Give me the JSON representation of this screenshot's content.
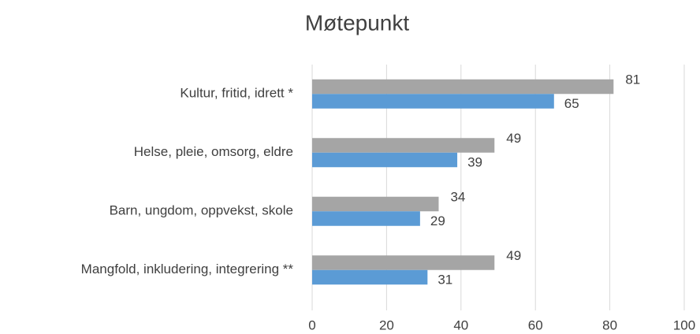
{
  "chart_data": {
    "type": "bar",
    "orientation": "horizontal",
    "title": "Møtepunkt",
    "categories": [
      "Kultur, fritid, idrett *",
      "Helse, pleie, omsorg, eldre",
      "Barn, ungdom, oppvekst, skole",
      "Mangfold, inkludering, integrering **"
    ],
    "series": [
      {
        "color": "#a5a5a5",
        "values": [
          81,
          49,
          34,
          49
        ]
      },
      {
        "color": "#5b9bd5",
        "values": [
          65,
          39,
          29,
          31
        ]
      }
    ],
    "xlim": [
      0,
      100
    ],
    "xticks": [
      0,
      20,
      40,
      60,
      80,
      100
    ],
    "grid": true
  }
}
